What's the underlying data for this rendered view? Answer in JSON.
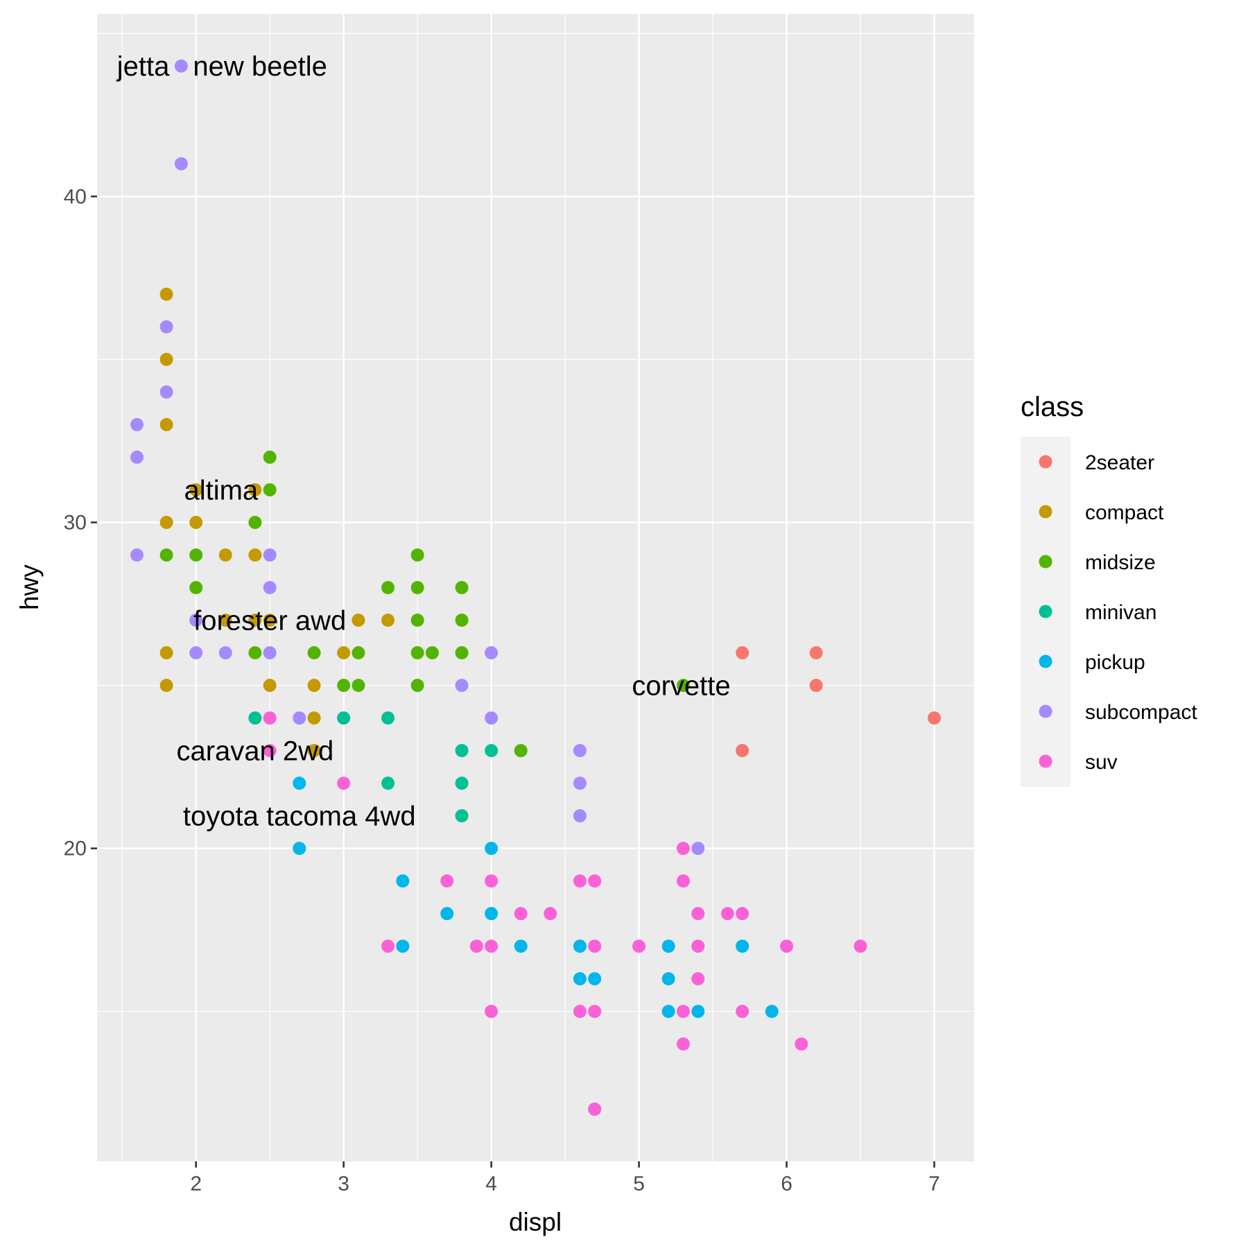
{
  "chart_data": {
    "type": "scatter",
    "title": "",
    "xlabel": "displ",
    "ylabel": "hwy",
    "xlim": [
      1.33,
      7.27
    ],
    "ylim": [
      10.4,
      45.6
    ],
    "x_ticks": [
      2,
      3,
      4,
      5,
      6,
      7
    ],
    "x_tick_labels": [
      "2",
      "3",
      "4",
      "5",
      "6",
      "7"
    ],
    "y_ticks": [
      20,
      30,
      40
    ],
    "y_tick_labels": [
      "20",
      "30",
      "40"
    ],
    "x_minor_ticks": [
      1.5,
      2.5,
      3.5,
      4.5,
      5.5,
      6.5
    ],
    "y_minor_ticks": [
      15,
      25,
      35,
      45
    ],
    "grid": true,
    "legend": {
      "title": "class",
      "placement": "right",
      "entries": [
        {
          "name": "2seater",
          "color": "#F8766D"
        },
        {
          "name": "compact",
          "color": "#C49A00"
        },
        {
          "name": "midsize",
          "color": "#53B400"
        },
        {
          "name": "minivan",
          "color": "#00C094"
        },
        {
          "name": "pickup",
          "color": "#00B6EB"
        },
        {
          "name": "subcompact",
          "color": "#A58AFF"
        },
        {
          "name": "suv",
          "color": "#FB61D7"
        }
      ]
    },
    "series": [
      {
        "name": "2seater",
        "points": [
          [
            5.7,
            26
          ],
          [
            6.2,
            26
          ],
          [
            6.2,
            25
          ],
          [
            5.7,
            23
          ],
          [
            7.0,
            24
          ]
        ]
      },
      {
        "name": "compact",
        "points": [
          [
            1.8,
            37
          ],
          [
            1.8,
            35
          ],
          [
            1.8,
            33
          ],
          [
            2.0,
            31
          ],
          [
            2.4,
            31
          ],
          [
            1.8,
            30
          ],
          [
            2.0,
            30
          ],
          [
            2.2,
            29
          ],
          [
            2.4,
            29
          ],
          [
            2.2,
            27
          ],
          [
            2.4,
            27
          ],
          [
            2.5,
            27
          ],
          [
            3.1,
            27
          ],
          [
            3.3,
            27
          ],
          [
            1.8,
            26
          ],
          [
            3.0,
            26
          ],
          [
            1.8,
            25
          ],
          [
            2.5,
            25
          ],
          [
            2.8,
            25
          ],
          [
            2.8,
            24
          ],
          [
            2.8,
            23
          ]
        ]
      },
      {
        "name": "midsize",
        "points": [
          [
            2.5,
            32
          ],
          [
            2.5,
            31
          ],
          [
            2.4,
            30
          ],
          [
            1.8,
            29
          ],
          [
            2.0,
            29
          ],
          [
            3.5,
            29
          ],
          [
            2.0,
            28
          ],
          [
            3.3,
            28
          ],
          [
            3.5,
            28
          ],
          [
            3.8,
            28
          ],
          [
            3.5,
            27
          ],
          [
            3.8,
            27
          ],
          [
            2.4,
            26
          ],
          [
            2.8,
            26
          ],
          [
            3.1,
            26
          ],
          [
            3.5,
            26
          ],
          [
            3.6,
            26
          ],
          [
            3.8,
            26
          ],
          [
            3.0,
            25
          ],
          [
            3.1,
            25
          ],
          [
            3.5,
            25
          ],
          [
            5.3,
            25
          ],
          [
            4.2,
            23
          ]
        ]
      },
      {
        "name": "minivan",
        "points": [
          [
            2.4,
            24
          ],
          [
            3.0,
            24
          ],
          [
            3.3,
            24
          ],
          [
            3.8,
            23
          ],
          [
            4.0,
            23
          ],
          [
            3.3,
            22
          ],
          [
            3.8,
            22
          ],
          [
            3.8,
            21
          ]
        ]
      },
      {
        "name": "pickup",
        "points": [
          [
            2.7,
            22
          ],
          [
            2.7,
            20
          ],
          [
            4.0,
            20
          ],
          [
            3.4,
            19
          ],
          [
            3.7,
            18
          ],
          [
            4.0,
            18
          ],
          [
            3.4,
            17
          ],
          [
            4.2,
            17
          ],
          [
            4.6,
            17
          ],
          [
            5.2,
            17
          ],
          [
            5.7,
            17
          ],
          [
            4.6,
            16
          ],
          [
            4.7,
            16
          ],
          [
            5.2,
            16
          ],
          [
            5.2,
            15
          ],
          [
            5.4,
            15
          ],
          [
            5.9,
            15
          ],
          [
            4.7,
            12
          ]
        ]
      },
      {
        "name": "subcompact",
        "points": [
          [
            1.9,
            44
          ],
          [
            1.9,
            41
          ],
          [
            1.8,
            36
          ],
          [
            1.8,
            34
          ],
          [
            1.6,
            33
          ],
          [
            1.6,
            32
          ],
          [
            1.6,
            29
          ],
          [
            2.5,
            29
          ],
          [
            2.5,
            28
          ],
          [
            2.0,
            27
          ],
          [
            2.0,
            26
          ],
          [
            2.2,
            26
          ],
          [
            2.5,
            26
          ],
          [
            4.0,
            26
          ],
          [
            3.8,
            25
          ],
          [
            2.7,
            24
          ],
          [
            4.0,
            24
          ],
          [
            4.6,
            23
          ],
          [
            4.6,
            22
          ],
          [
            4.6,
            21
          ],
          [
            5.4,
            20
          ]
        ]
      },
      {
        "name": "suv",
        "points": [
          [
            2.5,
            24
          ],
          [
            2.5,
            23
          ],
          [
            3.0,
            22
          ],
          [
            5.3,
            20
          ],
          [
            3.7,
            19
          ],
          [
            4.0,
            19
          ],
          [
            4.6,
            19
          ],
          [
            4.7,
            19
          ],
          [
            5.3,
            19
          ],
          [
            4.2,
            18
          ],
          [
            4.4,
            18
          ],
          [
            5.4,
            18
          ],
          [
            5.6,
            18
          ],
          [
            5.7,
            18
          ],
          [
            3.3,
            17
          ],
          [
            3.9,
            17
          ],
          [
            4.0,
            17
          ],
          [
            4.7,
            17
          ],
          [
            5.0,
            17
          ],
          [
            5.4,
            17
          ],
          [
            6.0,
            17
          ],
          [
            6.5,
            17
          ],
          [
            5.4,
            16
          ],
          [
            4.0,
            15
          ],
          [
            4.6,
            15
          ],
          [
            4.7,
            15
          ],
          [
            5.3,
            15
          ],
          [
            5.7,
            15
          ],
          [
            5.3,
            14
          ],
          [
            6.1,
            14
          ],
          [
            4.7,
            12
          ]
        ]
      }
    ],
    "annotations": [
      {
        "text": "jetta",
        "x": 1.9,
        "y": 44,
        "anchor": "end"
      },
      {
        "text": "new beetle",
        "x": 1.9,
        "y": 44,
        "anchor": "start"
      },
      {
        "text": "altima",
        "x": 2.5,
        "y": 31,
        "anchor": "end"
      },
      {
        "text": "forester awd",
        "x": 2.5,
        "y": 27,
        "anchor": "middle"
      },
      {
        "text": "corvette",
        "x": 5.7,
        "y": 25,
        "anchor": "end"
      },
      {
        "text": "caravan 2wd",
        "x": 2.4,
        "y": 23,
        "anchor": "middle"
      },
      {
        "text": "toyota tacoma 4wd",
        "x": 2.7,
        "y": 21,
        "anchor": "middle"
      }
    ]
  }
}
